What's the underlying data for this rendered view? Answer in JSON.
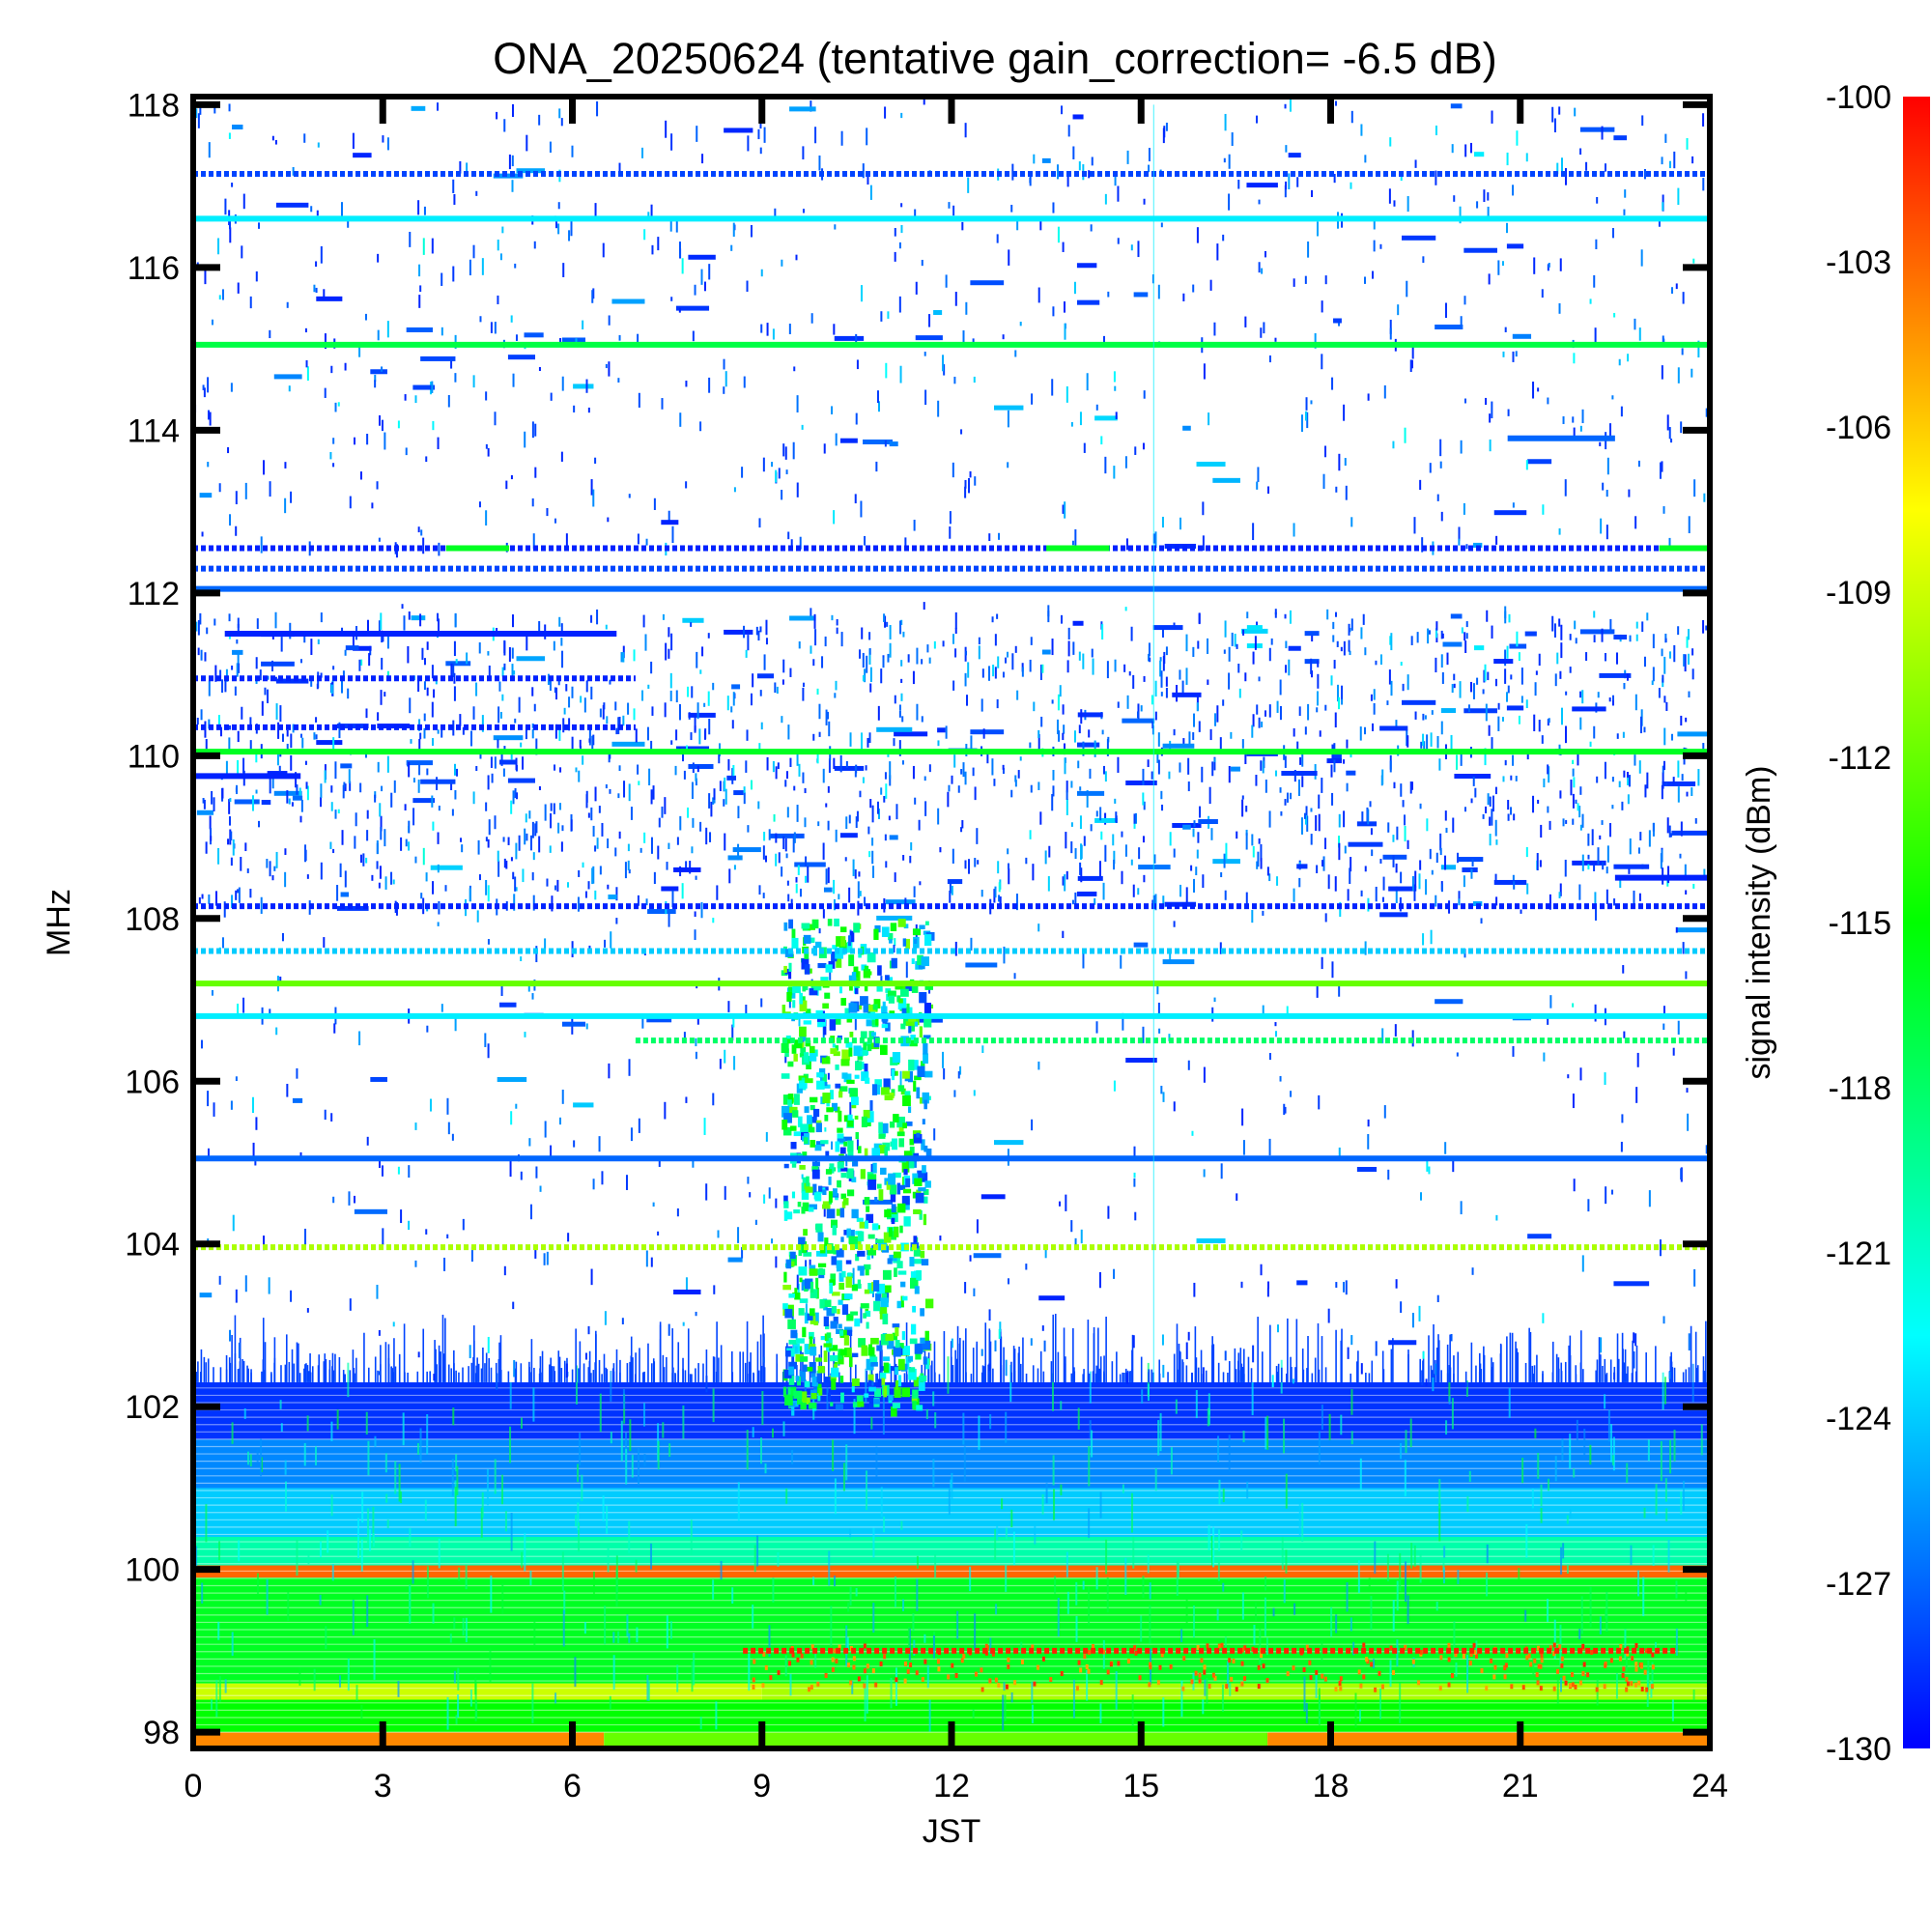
{
  "chart_data": {
    "type": "heatmap",
    "title": "ONA_20250624 (tentative gain_correction= -6.5 dB)",
    "xlabel": "JST",
    "ylabel": "MHz",
    "xlim": [
      0,
      24
    ],
    "ylim": [
      97.8,
      118.1
    ],
    "x_ticks": [
      0,
      3,
      6,
      9,
      12,
      15,
      18,
      21,
      24
    ],
    "x_tick_labels": [
      "0",
      "3",
      "6",
      "9",
      "12",
      "15",
      "18",
      "21",
      "24"
    ],
    "y_ticks": [
      98,
      100,
      102,
      104,
      106,
      108,
      110,
      112,
      114,
      116,
      118
    ],
    "y_tick_labels": [
      "98",
      "100",
      "102",
      "104",
      "106",
      "108",
      "110",
      "112",
      "114",
      "116",
      "118"
    ],
    "colorbar": {
      "label": "signal intensity (dBm)",
      "range": [
        -130,
        -100
      ],
      "ticks": [
        -100,
        -103,
        -106,
        -109,
        -112,
        -115,
        -118,
        -121,
        -124,
        -127,
        -130
      ],
      "tick_labels": [
        "-100",
        "-103",
        "-106",
        "-109",
        "-112",
        "-115",
        "-118",
        "-121",
        "-124",
        "-127",
        "-130"
      ],
      "colormap": [
        "#0000ff",
        "#0080ff",
        "#00ffff",
        "#00ff80",
        "#00ff00",
        "#80ff00",
        "#ffff00",
        "#ff8000",
        "#ff0000"
      ]
    },
    "bands": [
      {
        "y0": 97.8,
        "y1": 98.0,
        "x0": 0,
        "x1": 6.5,
        "dbm": -104
      },
      {
        "y0": 97.8,
        "y1": 98.0,
        "x0": 6.5,
        "x1": 17,
        "dbm": -112
      },
      {
        "y0": 97.8,
        "y1": 98.0,
        "x0": 17,
        "x1": 24,
        "dbm": -104
      },
      {
        "y0": 98.0,
        "y1": 98.4,
        "x0": 0,
        "x1": 24,
        "dbm": -115
      },
      {
        "y0": 98.4,
        "y1": 98.6,
        "x0": 0,
        "x1": 9,
        "dbm": -109
      },
      {
        "y0": 98.4,
        "y1": 98.6,
        "x0": 9,
        "x1": 24,
        "dbm": -110
      },
      {
        "y0": 98.6,
        "y1": 99.9,
        "x0": 0,
        "x1": 24,
        "dbm": -116
      },
      {
        "y0": 99.9,
        "y1": 100.05,
        "x0": 0,
        "x1": 24,
        "dbm": -103
      },
      {
        "y0": 100.05,
        "y1": 100.4,
        "x0": 0,
        "x1": 24,
        "dbm": -120
      },
      {
        "y0": 100.4,
        "y1": 101.0,
        "x0": 0,
        "x1": 24,
        "dbm": -124
      },
      {
        "y0": 101.0,
        "y1": 101.6,
        "x0": 0,
        "x1": 24,
        "dbm": -126
      },
      {
        "y0": 101.6,
        "y1": 102.3,
        "x0": 0,
        "x1": 24,
        "dbm": -128.5
      }
    ],
    "lines": [
      {
        "freq": 99.0,
        "x0": 8.7,
        "x1": 23.5,
        "dbm": -101,
        "dash": true
      },
      {
        "freq": 103.96,
        "x0": 0,
        "x1": 24,
        "dbm": -110,
        "dash": true
      },
      {
        "freq": 105.05,
        "x0": 0,
        "x1": 24,
        "dbm": -127,
        "dash": false
      },
      {
        "freq": 106.5,
        "x0": 7,
        "x1": 24,
        "dbm": -118,
        "dash": true
      },
      {
        "freq": 106.8,
        "x0": 0,
        "x1": 24,
        "dbm": -123,
        "dash": false
      },
      {
        "freq": 107.2,
        "x0": 0,
        "x1": 24,
        "dbm": -112,
        "dash": false
      },
      {
        "freq": 107.6,
        "x0": 0,
        "x1": 24,
        "dbm": -124,
        "dash": true
      },
      {
        "freq": 108.15,
        "x0": 0,
        "x1": 24,
        "dbm": -129,
        "dash": true
      },
      {
        "freq": 110.05,
        "x0": 0,
        "x1": 24,
        "dbm": -116,
        "dash": false
      },
      {
        "freq": 112.05,
        "x0": 0,
        "x1": 24,
        "dbm": -127,
        "dash": false
      },
      {
        "freq": 112.3,
        "x0": 0,
        "x1": 24,
        "dbm": -128,
        "dash": true
      },
      {
        "freq": 112.55,
        "x0": 0,
        "x1": 24,
        "dbm": -129,
        "dash": true
      },
      {
        "freq": 115.05,
        "x0": 0,
        "x1": 24,
        "dbm": -117,
        "dash": false
      },
      {
        "freq": 116.6,
        "x0": 0,
        "x1": 24,
        "dbm": -123,
        "dash": false
      },
      {
        "freq": 117.15,
        "x0": 0,
        "x1": 24,
        "dbm": -128,
        "dash": true
      },
      {
        "freq": 111.5,
        "x0": 0.5,
        "x1": 6.7,
        "dbm": -129,
        "dash": false
      },
      {
        "freq": 110.95,
        "x0": 0,
        "x1": 7,
        "dbm": -129,
        "dash": true
      },
      {
        "freq": 110.35,
        "x0": 0,
        "x1": 7,
        "dbm": -129,
        "dash": true
      },
      {
        "freq": 109.75,
        "x0": 0,
        "x1": 1.7,
        "dbm": -129,
        "dash": false
      },
      {
        "freq": 108.5,
        "x0": 22.5,
        "x1": 24,
        "dbm": -129,
        "dash": false
      },
      {
        "freq": 113.9,
        "x0": 20.8,
        "x1": 22.5,
        "dbm": -127,
        "dash": false
      },
      {
        "freq": 112.55,
        "x0": 4.0,
        "x1": 5.0,
        "dbm": -116,
        "dash": false
      },
      {
        "freq": 112.55,
        "x0": 13.5,
        "x1": 14.5,
        "dbm": -116,
        "dash": false
      },
      {
        "freq": 112.55,
        "x0": 23.2,
        "x1": 24,
        "dbm": -116,
        "dash": false
      }
    ],
    "noise_regions": [
      {
        "y0": 102.3,
        "y1": 111.9,
        "x0": 0,
        "x1": 24,
        "density": 0.5
      },
      {
        "y0": 108.2,
        "y1": 111.8,
        "x0": 0,
        "x1": 24,
        "density": 1.0
      },
      {
        "y0": 112.6,
        "y1": 118.1,
        "x0": 0,
        "x1": 24,
        "density": 0.5
      }
    ],
    "burst": {
      "x0": 9.3,
      "x1": 11.6,
      "y0": 102.0,
      "y1": 108.0
    }
  }
}
